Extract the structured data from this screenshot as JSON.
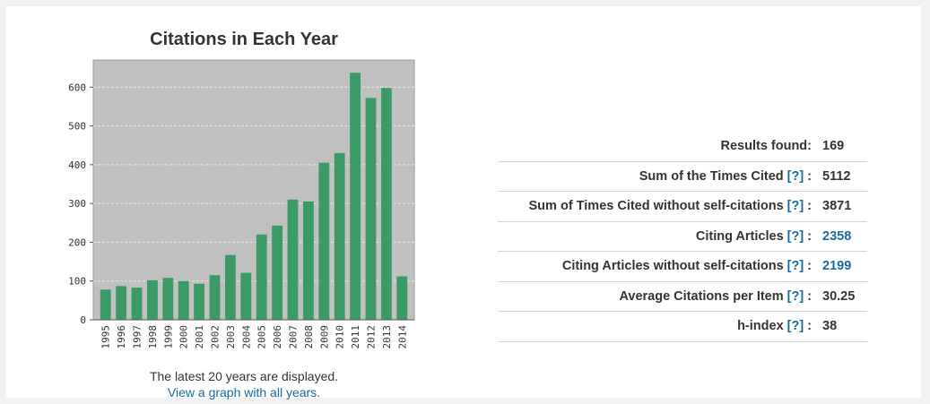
{
  "chart_title": "Citations in Each Year",
  "footnote": {
    "text": "The latest 20 years are displayed.",
    "link": "View a graph with all years."
  },
  "stats": [
    {
      "label": "Results found:",
      "help": null,
      "value": "169",
      "value_link": false
    },
    {
      "label": "Sum of the Times Cited",
      "help": "[?]",
      "value": "5112",
      "value_link": false
    },
    {
      "label": "Sum of Times Cited without self-citations",
      "help": "[?]",
      "value": "3871",
      "value_link": false
    },
    {
      "label": "Citing Articles",
      "help": "[?]",
      "value": "2358",
      "value_link": true
    },
    {
      "label": "Citing Articles without self-citations",
      "help": "[?]",
      "value": "2199",
      "value_link": true
    },
    {
      "label": "Average Citations per Item",
      "help": "[?]",
      "value": "30.25",
      "value_link": false
    },
    {
      "label": "h-index",
      "help": "[?]",
      "value": "38",
      "value_link": false
    }
  ],
  "colors": {
    "bar": "#3b9a65",
    "plot_bg": "#c0c0c0",
    "link": "#1a6a9e"
  },
  "chart_data": {
    "type": "bar",
    "title": "Citations in Each Year",
    "categories": [
      "1995",
      "1996",
      "1997",
      "1998",
      "1999",
      "2000",
      "2001",
      "2002",
      "2003",
      "2004",
      "2005",
      "2006",
      "2007",
      "2008",
      "2009",
      "2010",
      "2011",
      "2012",
      "2013",
      "2014"
    ],
    "values": [
      78,
      87,
      83,
      102,
      108,
      100,
      93,
      115,
      167,
      121,
      220,
      243,
      310,
      305,
      405,
      430,
      637,
      572,
      598,
      112
    ],
    "yticks": [
      0,
      100,
      200,
      300,
      400,
      500,
      600
    ],
    "ylim": [
      0,
      670
    ],
    "grid": true,
    "xlabel": "",
    "ylabel": ""
  }
}
